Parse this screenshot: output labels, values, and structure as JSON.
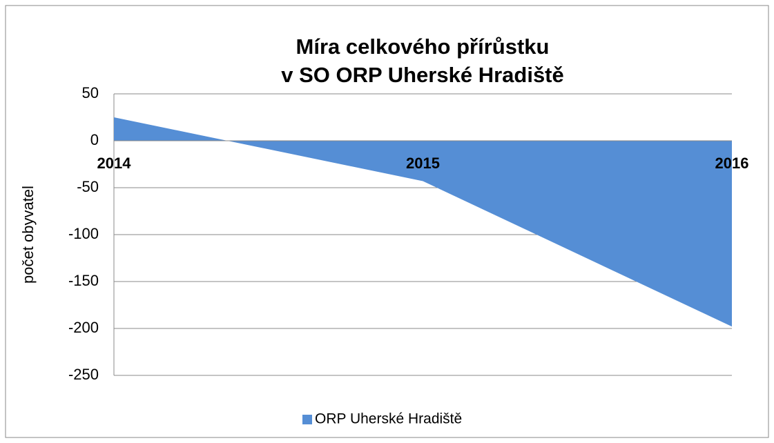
{
  "chart_data": {
    "type": "area",
    "title": [
      "Míra celkového přírůstku",
      "v  SO ORP Uherské Hradiště"
    ],
    "y_label": "počet obyvatel",
    "categories": [
      "2014",
      "2015",
      "2016"
    ],
    "series": [
      {
        "name": "ORP Uherské Hradiště",
        "color": "#558ed5",
        "values": [
          25,
          -43,
          -198
        ]
      }
    ],
    "ylim": [
      -250,
      50
    ],
    "yticks": [
      50,
      0,
      -50,
      -100,
      -150,
      -200,
      -250
    ],
    "grid": true,
    "legend": "bottom"
  }
}
